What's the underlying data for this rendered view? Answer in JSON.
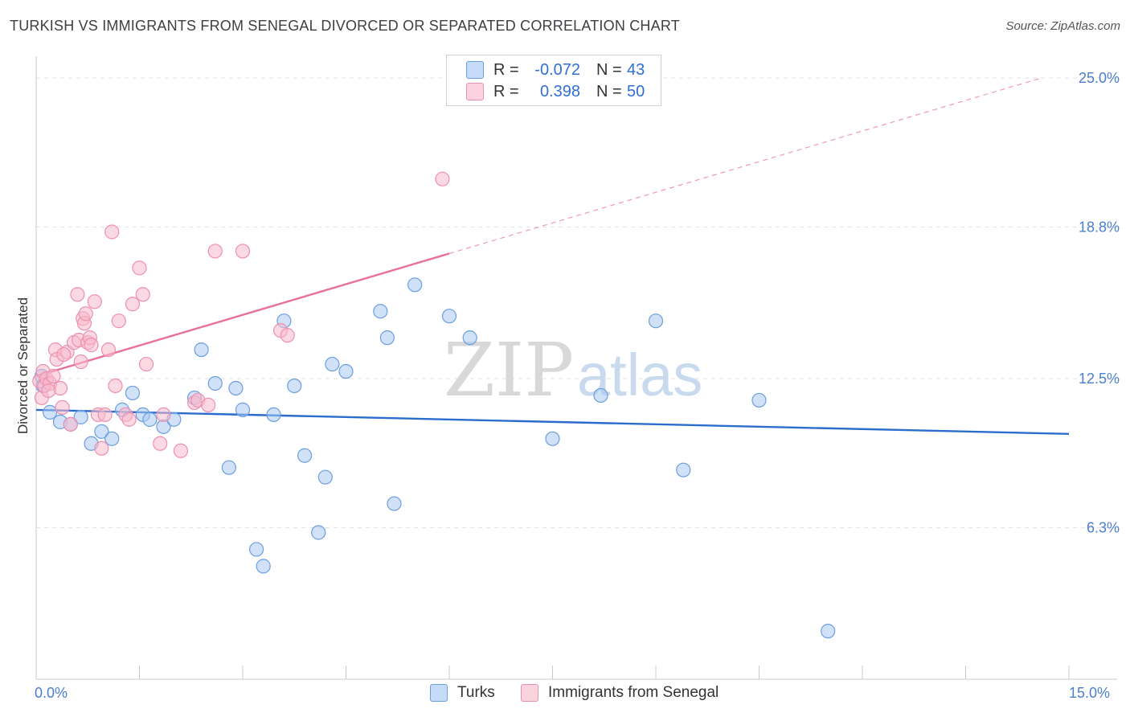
{
  "header": {
    "title": "TURKISH VS IMMIGRANTS FROM SENEGAL DIVORCED OR SEPARATED CORRELATION CHART",
    "source": "Source: ZipAtlas.com"
  },
  "watermark": {
    "zip": "ZIP",
    "atlas": "atlas"
  },
  "legend": {
    "rows": [
      {
        "r_label": "R =",
        "r_value": "-0.072",
        "n_label": "N =",
        "n_value": "43",
        "color": "#a9c9f3"
      },
      {
        "r_label": "R =",
        "r_value": "0.398",
        "n_label": "N =",
        "n_value": "50",
        "color": "#f7b9cc"
      }
    ]
  },
  "chart_data": {
    "type": "scatter",
    "title": "TURKISH VS IMMIGRANTS FROM SENEGAL DIVORCED OR SEPARATED CORRELATION CHART",
    "xlabel": "",
    "ylabel": "Divorced or Separated",
    "xlim": [
      0,
      15
    ],
    "ylim": [
      0,
      25.5
    ],
    "x_tick_labels": {
      "min": "0.0%",
      "max": "15.0%"
    },
    "y_ticks": [
      {
        "value": 6.3,
        "label": "6.3%"
      },
      {
        "value": 12.5,
        "label": "12.5%"
      },
      {
        "value": 18.8,
        "label": "18.8%"
      },
      {
        "value": 25.0,
        "label": "25.0%"
      }
    ],
    "series": [
      {
        "name": "Turks",
        "color": "#a9c9f3",
        "stroke": "#6a9ee0",
        "trend": {
          "x0": 0.0,
          "y0": 11.2,
          "x1": 15.0,
          "y1": 10.2,
          "color": "#2a6dcc"
        },
        "points": [
          [
            0.08,
            12.6
          ],
          [
            0.1,
            12.2
          ],
          [
            0.2,
            11.1
          ],
          [
            0.35,
            10.7
          ],
          [
            0.5,
            10.6
          ],
          [
            0.65,
            10.9
          ],
          [
            0.8,
            9.8
          ],
          [
            0.95,
            10.3
          ],
          [
            1.1,
            10.0
          ],
          [
            1.25,
            11.2
          ],
          [
            1.4,
            11.9
          ],
          [
            1.55,
            11.0
          ],
          [
            1.65,
            10.8
          ],
          [
            1.85,
            10.5
          ],
          [
            2.0,
            10.8
          ],
          [
            2.3,
            11.7
          ],
          [
            2.4,
            13.7
          ],
          [
            2.6,
            12.3
          ],
          [
            2.8,
            8.8
          ],
          [
            2.9,
            12.1
          ],
          [
            3.0,
            11.2
          ],
          [
            3.2,
            5.4
          ],
          [
            3.3,
            4.7
          ],
          [
            3.45,
            11.0
          ],
          [
            3.6,
            14.9
          ],
          [
            3.75,
            12.2
          ],
          [
            3.9,
            9.3
          ],
          [
            4.1,
            6.1
          ],
          [
            4.2,
            8.4
          ],
          [
            4.3,
            13.1
          ],
          [
            4.5,
            12.8
          ],
          [
            5.0,
            15.3
          ],
          [
            5.1,
            14.2
          ],
          [
            5.2,
            7.3
          ],
          [
            5.5,
            16.4
          ],
          [
            6.0,
            15.1
          ],
          [
            6.3,
            14.2
          ],
          [
            7.5,
            10.0
          ],
          [
            8.2,
            11.8
          ],
          [
            9.0,
            14.9
          ],
          [
            9.4,
            8.7
          ],
          [
            10.5,
            11.6
          ],
          [
            11.5,
            2.0
          ]
        ]
      },
      {
        "name": "Immigrants from Senegal",
        "color": "#f7b9cc",
        "stroke": "#ee8fae",
        "trend": {
          "x0": 0.0,
          "y0": 12.6,
          "x1": 6.0,
          "y1": 17.7,
          "color": "#e8709a"
        },
        "trend_extension": {
          "x0": 6.0,
          "y0": 17.7,
          "x1": 14.6,
          "y1": 25.0
        },
        "points": [
          [
            0.05,
            12.4
          ],
          [
            0.08,
            11.7
          ],
          [
            0.1,
            12.8
          ],
          [
            0.12,
            12.2
          ],
          [
            0.15,
            12.5
          ],
          [
            0.2,
            12.3
          ],
          [
            0.25,
            12.6
          ],
          [
            0.28,
            13.7
          ],
          [
            0.3,
            13.3
          ],
          [
            0.35,
            12.1
          ],
          [
            0.38,
            11.3
          ],
          [
            0.45,
            13.6
          ],
          [
            0.5,
            10.6
          ],
          [
            0.55,
            14.0
          ],
          [
            0.6,
            16.0
          ],
          [
            0.62,
            14.1
          ],
          [
            0.65,
            13.2
          ],
          [
            0.68,
            15.0
          ],
          [
            0.7,
            14.8
          ],
          [
            0.75,
            14.0
          ],
          [
            0.78,
            14.2
          ],
          [
            0.8,
            13.9
          ],
          [
            0.85,
            15.7
          ],
          [
            0.9,
            11.0
          ],
          [
            0.95,
            9.6
          ],
          [
            1.0,
            11.0
          ],
          [
            1.05,
            13.7
          ],
          [
            1.1,
            18.6
          ],
          [
            1.15,
            12.2
          ],
          [
            1.2,
            14.9
          ],
          [
            1.3,
            11.0
          ],
          [
            1.35,
            10.8
          ],
          [
            1.4,
            15.6
          ],
          [
            1.5,
            17.1
          ],
          [
            1.55,
            16.0
          ],
          [
            1.6,
            13.1
          ],
          [
            1.8,
            9.8
          ],
          [
            1.85,
            11.0
          ],
          [
            2.1,
            9.5
          ],
          [
            2.3,
            11.5
          ],
          [
            2.35,
            11.6
          ],
          [
            2.5,
            11.4
          ],
          [
            2.6,
            17.8
          ],
          [
            3.0,
            17.8
          ],
          [
            3.55,
            14.5
          ],
          [
            3.65,
            14.3
          ],
          [
            5.9,
            20.8
          ],
          [
            0.4,
            13.5
          ],
          [
            0.18,
            12.0
          ],
          [
            0.72,
            15.2
          ]
        ]
      }
    ]
  },
  "bottom_legend": [
    {
      "label": "Turks",
      "color": "#a9c9f3"
    },
    {
      "label": "Immigrants from Senegal",
      "color": "#f7b9cc"
    }
  ]
}
